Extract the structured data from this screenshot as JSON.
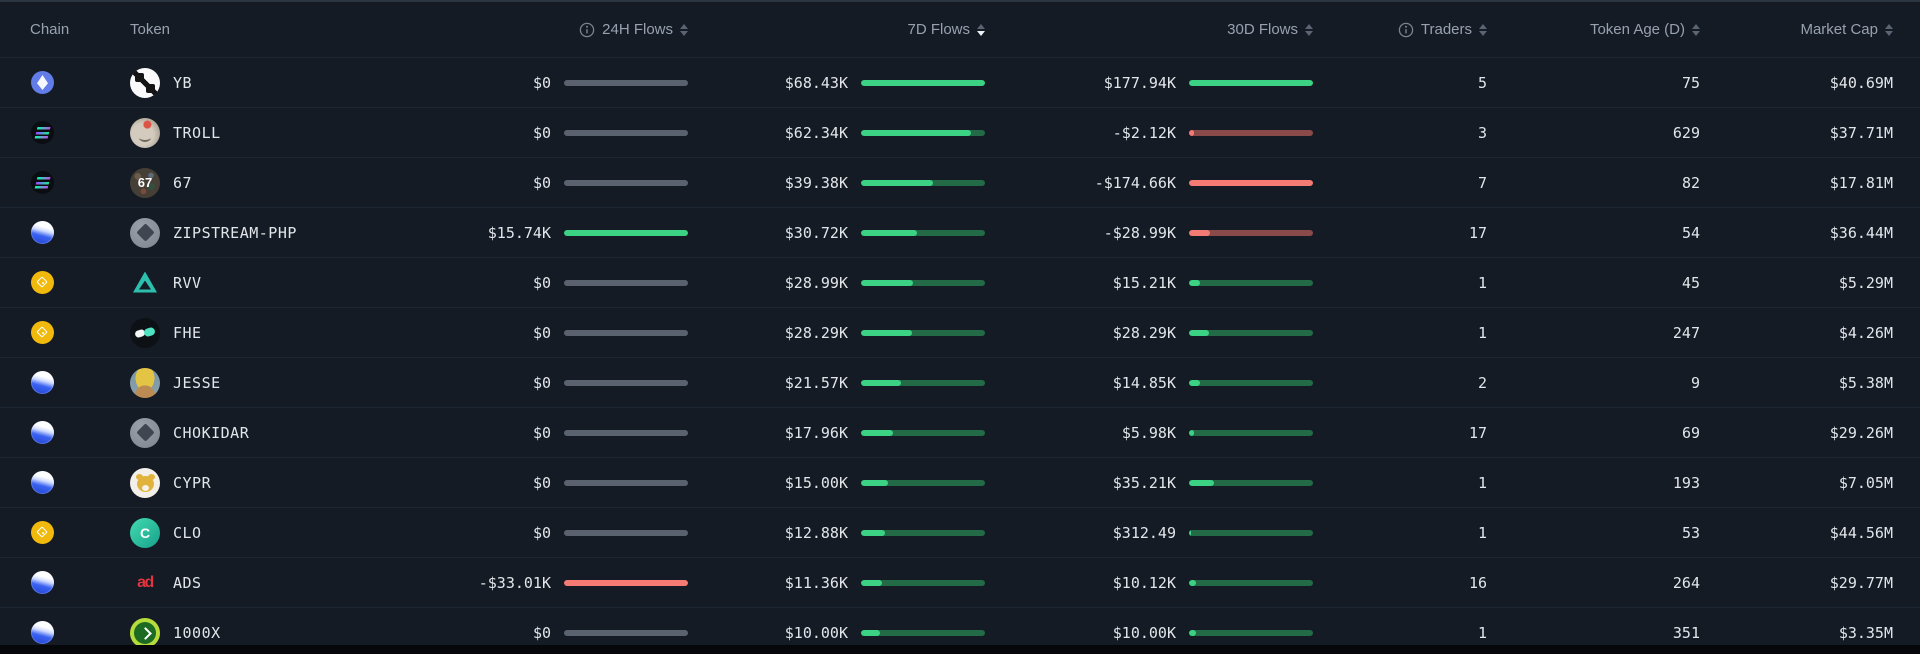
{
  "sort": {
    "column": "7D Flows",
    "direction": "desc"
  },
  "colors": {
    "background": "#141b24",
    "flow_positive": "#3bd283",
    "flow_positive_track": "#226b46",
    "flow_negative": "#f47a74",
    "flow_negative_track": "#8a4a49",
    "flow_zero_track": "#59626e",
    "header_text": "#97a1b0",
    "cell_text": "#e2e6ea"
  },
  "table": {
    "headers": {
      "chain": "Chain",
      "token": "Token",
      "h24": "24H Flows",
      "d7": "7D Flows",
      "d30": "30D Flows",
      "traders": "Traders",
      "age": "Token Age (D)",
      "mcap": "Market Cap"
    }
  },
  "rows": [
    {
      "chain": "ethereum",
      "token": "YB",
      "ticon": "yb",
      "h24": {
        "text": "$0",
        "pct": 0,
        "tone": "zero"
      },
      "d7": {
        "text": "$68.43K",
        "pct": 100,
        "tone": "pos"
      },
      "d30": {
        "text": "$177.94K",
        "pct": 100,
        "tone": "pos"
      },
      "traders": "5",
      "age": "75",
      "mcap": "$40.69M"
    },
    {
      "chain": "solana",
      "token": "TROLL",
      "ticon": "troll",
      "h24": {
        "text": "$0",
        "pct": 0,
        "tone": "zero"
      },
      "d7": {
        "text": "$62.34K",
        "pct": 89,
        "tone": "pos"
      },
      "d30": {
        "text": "-$2.12K",
        "pct": 4,
        "tone": "neg"
      },
      "traders": "3",
      "age": "629",
      "mcap": "$37.71M"
    },
    {
      "chain": "solana",
      "token": "67",
      "ticon": "n67",
      "icon_label": "67",
      "h24": {
        "text": "$0",
        "pct": 0,
        "tone": "zero"
      },
      "d7": {
        "text": "$39.38K",
        "pct": 58,
        "tone": "pos"
      },
      "d30": {
        "text": "-$174.66K",
        "pct": 100,
        "tone": "neg"
      },
      "traders": "7",
      "age": "82",
      "mcap": "$17.81M"
    },
    {
      "chain": "base",
      "token": "ZIPSTREAM-PHP",
      "ticon": "zipcoin",
      "h24": {
        "text": "$15.74K",
        "pct": 100,
        "tone": "pos"
      },
      "d7": {
        "text": "$30.72K",
        "pct": 45,
        "tone": "pos"
      },
      "d30": {
        "text": "-$28.99K",
        "pct": 17,
        "tone": "neg"
      },
      "traders": "17",
      "age": "54",
      "mcap": "$36.44M"
    },
    {
      "chain": "bnb",
      "token": "RVV",
      "ticon": "rvv",
      "h24": {
        "text": "$0",
        "pct": 0,
        "tone": "zero"
      },
      "d7": {
        "text": "$28.99K",
        "pct": 42,
        "tone": "pos"
      },
      "d30": {
        "text": "$15.21K",
        "pct": 9,
        "tone": "pos"
      },
      "traders": "1",
      "age": "45",
      "mcap": "$5.29M"
    },
    {
      "chain": "bnb",
      "token": "FHE",
      "ticon": "fhe",
      "h24": {
        "text": "$0",
        "pct": 0,
        "tone": "zero"
      },
      "d7": {
        "text": "$28.29K",
        "pct": 41,
        "tone": "pos"
      },
      "d30": {
        "text": "$28.29K",
        "pct": 16,
        "tone": "pos"
      },
      "traders": "1",
      "age": "247",
      "mcap": "$4.26M"
    },
    {
      "chain": "base",
      "token": "JESSE",
      "ticon": "jesse",
      "h24": {
        "text": "$0",
        "pct": 0,
        "tone": "zero"
      },
      "d7": {
        "text": "$21.57K",
        "pct": 32,
        "tone": "pos"
      },
      "d30": {
        "text": "$14.85K",
        "pct": 9,
        "tone": "pos"
      },
      "traders": "2",
      "age": "9",
      "mcap": "$5.38M"
    },
    {
      "chain": "base",
      "token": "CHOKIDAR",
      "ticon": "zipcoin",
      "h24": {
        "text": "$0",
        "pct": 0,
        "tone": "zero"
      },
      "d7": {
        "text": "$17.96K",
        "pct": 26,
        "tone": "pos"
      },
      "d30": {
        "text": "$5.98K",
        "pct": 4,
        "tone": "pos"
      },
      "traders": "17",
      "age": "69",
      "mcap": "$29.26M"
    },
    {
      "chain": "base",
      "token": "CYPR",
      "ticon": "cypr",
      "h24": {
        "text": "$0",
        "pct": 0,
        "tone": "zero"
      },
      "d7": {
        "text": "$15.00K",
        "pct": 22,
        "tone": "pos"
      },
      "d30": {
        "text": "$35.21K",
        "pct": 20,
        "tone": "pos"
      },
      "traders": "1",
      "age": "193",
      "mcap": "$7.05M"
    },
    {
      "chain": "bnb",
      "token": "CLO",
      "ticon": "clo",
      "icon_label": "C",
      "h24": {
        "text": "$0",
        "pct": 0,
        "tone": "zero"
      },
      "d7": {
        "text": "$12.88K",
        "pct": 19,
        "tone": "pos"
      },
      "d30": {
        "text": "$312.49",
        "pct": 2,
        "tone": "pos"
      },
      "traders": "1",
      "age": "53",
      "mcap": "$44.56M"
    },
    {
      "chain": "base",
      "token": "ADS",
      "ticon": "ads",
      "icon_label": "ad",
      "h24": {
        "text": "-$33.01K",
        "pct": 100,
        "tone": "neg"
      },
      "d7": {
        "text": "$11.36K",
        "pct": 17,
        "tone": "pos"
      },
      "d30": {
        "text": "$10.12K",
        "pct": 6,
        "tone": "pos"
      },
      "traders": "16",
      "age": "264",
      "mcap": "$29.77M"
    },
    {
      "chain": "base",
      "token": "1000X",
      "ticon": "x1000",
      "h24": {
        "text": "$0",
        "pct": 0,
        "tone": "zero"
      },
      "d7": {
        "text": "$10.00K",
        "pct": 15,
        "tone": "pos"
      },
      "d30": {
        "text": "$10.00K",
        "pct": 6,
        "tone": "pos"
      },
      "traders": "1",
      "age": "351",
      "mcap": "$3.35M"
    }
  ]
}
